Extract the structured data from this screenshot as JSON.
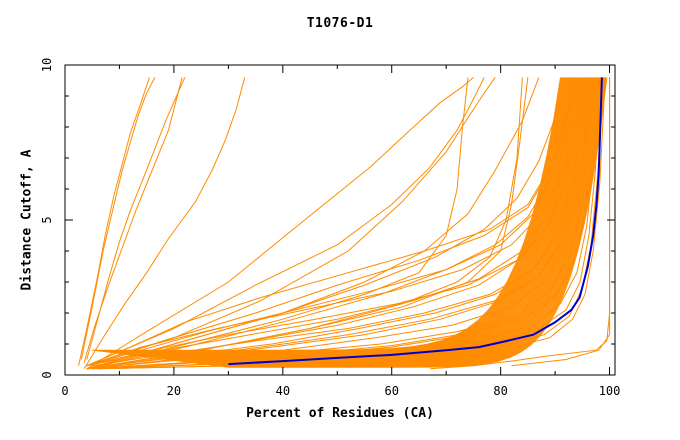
{
  "chart_data": {
    "type": "line",
    "title": "T1076-D1",
    "xlabel": "Percent of Residues (CA)",
    "ylabel": "Distance Cutoff, A",
    "xlim": [
      0,
      101
    ],
    "ylim": [
      0,
      10
    ],
    "x_ticks": [
      "0",
      "20",
      "40",
      "60",
      "80",
      "100"
    ],
    "y_ticks": [
      "0",
      "5",
      "10"
    ],
    "grid": false,
    "colors": {
      "models": "#ff8c00",
      "highlight": "#0000cc",
      "axis": "#000000"
    },
    "highlight_series": {
      "x": [
        30,
        40,
        50,
        60,
        70,
        76,
        80,
        86,
        90,
        93,
        94.5,
        96,
        97,
        97.6,
        98,
        98.3,
        98.6
      ],
      "y": [
        0.35,
        0.45,
        0.55,
        0.65,
        0.8,
        0.9,
        1.05,
        1.3,
        1.7,
        2.1,
        2.5,
        3.5,
        4.5,
        5.5,
        6.5,
        8,
        9.6
      ]
    },
    "series": [
      {
        "x": [
          2.5,
          4,
          6,
          7.5,
          9,
          10.5,
          12,
          14,
          15.5
        ],
        "y": [
          0.3,
          1.5,
          3.2,
          4.6,
          5.8,
          6.8,
          7.8,
          8.8,
          9.6
        ]
      },
      {
        "x": [
          3,
          5,
          7,
          9,
          10.5,
          12,
          13.5,
          15,
          16.5
        ],
        "y": [
          0.5,
          2.2,
          4.0,
          5.5,
          6.6,
          7.5,
          8.4,
          9.1,
          9.6
        ]
      },
      {
        "x": [
          4,
          6,
          8,
          10,
          12,
          14.5,
          16.5,
          18.5,
          20.5,
          22
        ],
        "y": [
          0.5,
          1.8,
          3.1,
          4.3,
          5.3,
          6.4,
          7.3,
          8.2,
          9.0,
          9.6
        ]
      },
      {
        "x": [
          3.5,
          5.5,
          8,
          10.5,
          13,
          16,
          19,
          21.5
        ],
        "y": [
          0.4,
          1.6,
          2.9,
          4.1,
          5.3,
          6.6,
          7.9,
          9.6
        ]
      },
      {
        "x": [
          3.5,
          7,
          11,
          15,
          19,
          24,
          27,
          29.5,
          31.5,
          33
        ],
        "y": [
          0.2,
          1.2,
          2.3,
          3.3,
          4.4,
          5.6,
          6.6,
          7.6,
          8.6,
          9.6
        ]
      },
      {
        "x": [
          4,
          15,
          30,
          44,
          56,
          64,
          69,
          73,
          75
        ],
        "y": [
          0.2,
          1.4,
          3.0,
          5.0,
          6.7,
          8.0,
          8.8,
          9.3,
          9.6
        ]
      },
      {
        "x": [
          4,
          20,
          36,
          52,
          62,
          70,
          74,
          77,
          79
        ],
        "y": [
          0.3,
          1.2,
          2.4,
          4.0,
          5.6,
          7.2,
          8.3,
          9.1,
          9.6
        ]
      },
      {
        "x": [
          4,
          20,
          35,
          50,
          60,
          67,
          72,
          75,
          77
        ],
        "y": [
          0.3,
          1.5,
          2.9,
          4.2,
          5.5,
          6.7,
          7.9,
          8.9,
          9.6
        ]
      },
      {
        "x": [
          4,
          20,
          40,
          55,
          66,
          74,
          79,
          84,
          87
        ],
        "y": [
          0.2,
          1.0,
          2.0,
          3.0,
          4.0,
          5.2,
          6.6,
          8.2,
          9.6
        ]
      },
      {
        "x": [
          4,
          20,
          40,
          55,
          65,
          70,
          72,
          73,
          74
        ],
        "y": [
          0.2,
          0.9,
          1.8,
          2.6,
          3.3,
          4.5,
          6.0,
          8.0,
          9.6
        ]
      },
      {
        "x": [
          4,
          25,
          45,
          62,
          72,
          78,
          81,
          83,
          84
        ],
        "y": [
          0.2,
          0.8,
          1.5,
          2.3,
          3.0,
          3.8,
          5.0,
          7.0,
          9.6
        ]
      },
      {
        "x": [
          4,
          25,
          45,
          62,
          74,
          80,
          82,
          83.5,
          85
        ],
        "y": [
          0.2,
          0.8,
          1.5,
          2.2,
          3.0,
          4.0,
          5.5,
          7.5,
          9.6
        ]
      },
      {
        "x": [
          4,
          20,
          40,
          55,
          68,
          77,
          83,
          87,
          90,
          91.5
        ],
        "y": [
          0.2,
          1.0,
          2.0,
          2.9,
          3.8,
          4.7,
          5.7,
          6.9,
          8.3,
          9.6
        ]
      },
      {
        "x": [
          4,
          22,
          42,
          58,
          70,
          79,
          85,
          89,
          92,
          93.5
        ],
        "y": [
          0.2,
          0.9,
          1.8,
          2.6,
          3.4,
          4.2,
          5.1,
          6.3,
          8.0,
          9.6
        ]
      },
      {
        "x": [
          4,
          18,
          35,
          50,
          65,
          77,
          85,
          89,
          91.5,
          93
        ],
        "y": [
          0.3,
          1.1,
          2.0,
          2.9,
          3.7,
          4.5,
          5.4,
          6.6,
          8.0,
          9.6
        ]
      },
      {
        "x": [
          4,
          12,
          22,
          36,
          52,
          66,
          78,
          85,
          89.5,
          92,
          93.5
        ],
        "y": [
          0.3,
          0.9,
          1.7,
          2.5,
          3.3,
          4.0,
          4.7,
          5.5,
          6.8,
          8.2,
          9.6
        ]
      },
      {
        "x": [
          4,
          14,
          26,
          40,
          56,
          70,
          80,
          86,
          90,
          92.5,
          94
        ],
        "y": [
          0.3,
          0.8,
          1.4,
          2.0,
          2.7,
          3.4,
          4.2,
          5.2,
          6.6,
          8.0,
          9.6
        ]
      },
      {
        "x": [
          4,
          18,
          34,
          50,
          64,
          76,
          84,
          89,
          92,
          94,
          95.2
        ],
        "y": [
          0.2,
          0.6,
          1.1,
          1.6,
          2.2,
          2.9,
          3.8,
          4.9,
          6.3,
          7.9,
          9.6
        ]
      },
      {
        "x": [
          4,
          18,
          34,
          50,
          64,
          76,
          84,
          88.5,
          91.5,
          93.5,
          94.8
        ],
        "y": [
          0.3,
          0.8,
          1.3,
          1.8,
          2.4,
          3.1,
          4.0,
          5.1,
          6.5,
          8.0,
          9.6
        ]
      },
      {
        "x": [
          4,
          20,
          38,
          54,
          68,
          79,
          86,
          90,
          92.8,
          94.8,
          96
        ],
        "y": [
          0.2,
          0.6,
          1.0,
          1.5,
          2.0,
          2.6,
          3.4,
          4.5,
          6.0,
          7.8,
          9.6
        ]
      },
      {
        "x": [
          4,
          20,
          38,
          55,
          69,
          80,
          87,
          91,
          93.5,
          95.3,
          96.5
        ],
        "y": [
          0.2,
          0.5,
          0.9,
          1.3,
          1.8,
          2.4,
          3.2,
          4.3,
          5.8,
          7.7,
          9.6
        ]
      },
      {
        "x": [
          4,
          22,
          40,
          57,
          71,
          82,
          88,
          91.8,
          94,
          95.5,
          96.8
        ],
        "y": [
          0.2,
          0.5,
          0.8,
          1.2,
          1.6,
          2.2,
          3.0,
          4.1,
          5.6,
          7.5,
          9.6
        ]
      },
      {
        "x": [
          4,
          22,
          40,
          58,
          72,
          83,
          89,
          92.5,
          94.6,
          96,
          97.2
        ],
        "y": [
          0.2,
          0.4,
          0.7,
          1.0,
          1.4,
          1.9,
          2.7,
          3.8,
          5.3,
          7.3,
          9.6
        ]
      },
      {
        "x": [
          4,
          24,
          42,
          60,
          74,
          84,
          90,
          93.2,
          95.2,
          96.6,
          97.6
        ],
        "y": [
          0.2,
          0.4,
          0.6,
          0.9,
          1.3,
          1.8,
          2.5,
          3.5,
          5.0,
          7.0,
          9.6
        ]
      },
      {
        "x": [
          5,
          26,
          45,
          62,
          76,
          86,
          91,
          94,
          95.8,
          97,
          98
        ],
        "y": [
          0.2,
          0.35,
          0.55,
          0.8,
          1.1,
          1.6,
          2.3,
          3.3,
          4.8,
          6.8,
          9.6
        ]
      },
      {
        "x": [
          5,
          28,
          47,
          64,
          78,
          87,
          92,
          94.6,
          96.2,
          97.4,
          98.4
        ],
        "y": [
          0.2,
          0.35,
          0.5,
          0.7,
          1.0,
          1.5,
          2.1,
          3.0,
          4.5,
          6.6,
          9.6
        ]
      },
      {
        "x": [
          6,
          30,
          49,
          66,
          79,
          88,
          92.6,
          95,
          96.6,
          97.8,
          98.8
        ],
        "y": [
          0.2,
          0.3,
          0.45,
          0.65,
          0.9,
          1.3,
          1.9,
          2.8,
          4.2,
          6.4,
          9.6
        ]
      },
      {
        "x": [
          6,
          32,
          51,
          68,
          81,
          89,
          93.2,
          95.5,
          97,
          98.2,
          99.2
        ],
        "y": [
          0.2,
          0.3,
          0.4,
          0.6,
          0.85,
          1.2,
          1.8,
          2.6,
          4.0,
          6.2,
          9.6
        ]
      },
      {
        "x": [
          5,
          20,
          35,
          52,
          66,
          78,
          86,
          90.5,
          93.4,
          95.6,
          97
        ],
        "y": [
          0.3,
          0.7,
          1.1,
          1.5,
          2.0,
          2.6,
          3.4,
          4.5,
          6.0,
          7.8,
          9.6
        ]
      },
      {
        "x": [
          4,
          16,
          30,
          46,
          61,
          74,
          83,
          88.6,
          92,
          94.5,
          96
        ],
        "y": [
          0.3,
          0.8,
          1.3,
          1.8,
          2.3,
          2.9,
          3.7,
          4.8,
          6.3,
          8.0,
          9.6
        ]
      },
      {
        "x": [
          4,
          14,
          28,
          44,
          60,
          73,
          82,
          88,
          91.6,
          94,
          95.5
        ],
        "y": [
          0.3,
          0.9,
          1.5,
          2.1,
          2.7,
          3.4,
          4.2,
          5.3,
          6.7,
          8.2,
          9.6
        ]
      },
      {
        "x": [
          5,
          20,
          36,
          52,
          67,
          79,
          87,
          91.4,
          94,
          96,
          97.5
        ],
        "y": [
          0.25,
          0.55,
          0.9,
          1.3,
          1.8,
          2.4,
          3.2,
          4.3,
          5.8,
          7.7,
          9.6
        ]
      },
      {
        "x": [
          6,
          24,
          42,
          60,
          74,
          84,
          90,
          93.4,
          95.6,
          97.1,
          98.4
        ],
        "y": [
          0.2,
          0.4,
          0.65,
          0.95,
          1.35,
          1.9,
          2.6,
          3.7,
          5.2,
          7.2,
          9.6
        ]
      },
      {
        "x": [
          67,
          75,
          82,
          88,
          97.5,
          99.5,
          100,
          100
        ],
        "y": [
          0.2,
          0.3,
          0.45,
          0.6,
          0.8,
          1.1,
          2.0,
          9.6
        ]
      },
      {
        "x": [
          82,
          92,
          98,
          100,
          100
        ],
        "y": [
          0.3,
          0.5,
          0.8,
          1.3,
          9.6
        ]
      }
    ]
  }
}
